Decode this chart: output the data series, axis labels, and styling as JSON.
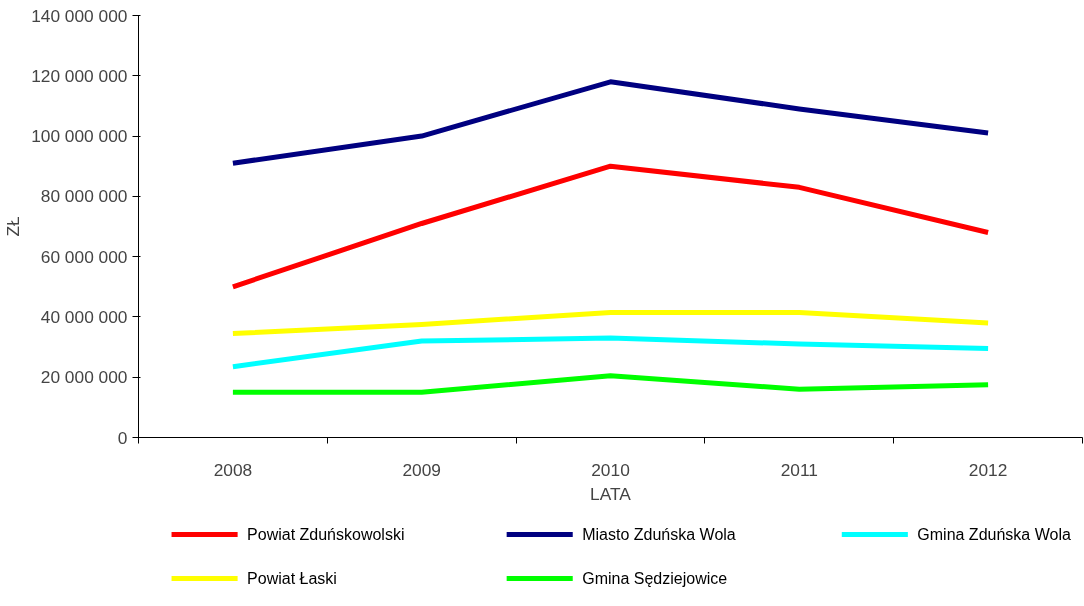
{
  "chart_data": {
    "type": "line",
    "xlabel": "LATA",
    "ylabel": "ZŁ",
    "categories": [
      "2008",
      "2009",
      "2010",
      "2011",
      "2012"
    ],
    "ylim": [
      0,
      140000000
    ],
    "yticks": [
      {
        "value": 0,
        "label": "0"
      },
      {
        "value": 20000000,
        "label": "20 000 000"
      },
      {
        "value": 40000000,
        "label": "40 000 000"
      },
      {
        "value": 60000000,
        "label": "60 000 000"
      },
      {
        "value": 80000000,
        "label": "80 000 000"
      },
      {
        "value": 100000000,
        "label": "100 000 000"
      },
      {
        "value": 120000000,
        "label": "120 000 000"
      },
      {
        "value": 140000000,
        "label": "140 000 000"
      }
    ],
    "grid": false,
    "legend": "bottom",
    "marker": "none",
    "line_style": "solid",
    "series": [
      {
        "name": "Powiat Zduńskowolski",
        "color": "#ff0000",
        "values": [
          50000000,
          71000000,
          90000000,
          83000000,
          68000000
        ]
      },
      {
        "name": "Miasto Zduńska Wola",
        "color": "#000080",
        "values": [
          91000000,
          100000000,
          118000000,
          109000000,
          101000000
        ]
      },
      {
        "name": "Gmina Zduńska Wola",
        "color": "#00ffff",
        "values": [
          23500000,
          32000000,
          33000000,
          31000000,
          29500000
        ]
      },
      {
        "name": "Powiat Łaski",
        "color": "#ffff00",
        "values": [
          34500000,
          37500000,
          41500000,
          41500000,
          38000000
        ]
      },
      {
        "name": "Gmina Sędziejowice",
        "color": "#00ff00",
        "values": [
          15000000,
          15000000,
          20500000,
          16000000,
          17500000
        ]
      }
    ]
  }
}
